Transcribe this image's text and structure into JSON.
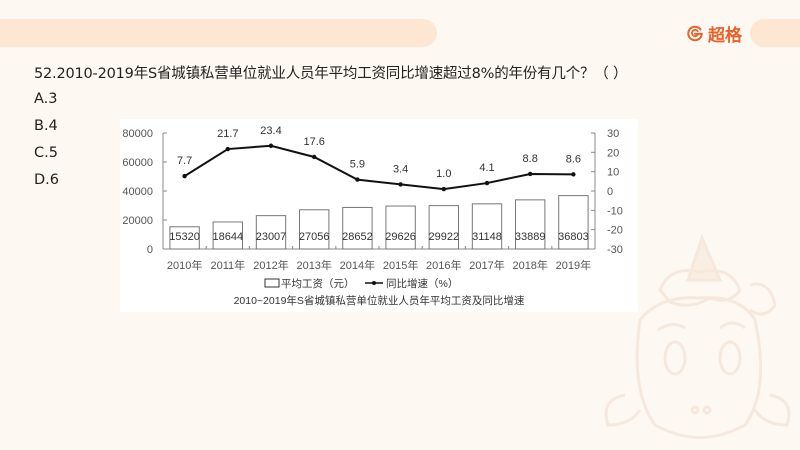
{
  "header": {
    "brand_name": "超格",
    "brand_icon": "g-logo-icon",
    "accent_color": "#e8622c",
    "bar_color": "#fde6d2"
  },
  "question": {
    "text": "52.2010-2019年S省城镇私营单位就业人员年平均工资同比增速超过8%的年份有几个？（    ）",
    "options": [
      {
        "label": "A.3"
      },
      {
        "label": "B.4"
      },
      {
        "label": "C.5"
      },
      {
        "label": "D.6"
      }
    ]
  },
  "chart_data": {
    "type": "bar+line",
    "title": "2010~2019年S省城镇私营单位就业人员年平均工资及同比增速",
    "categories": [
      "2010年",
      "2011年",
      "2012年",
      "2013年",
      "2014年",
      "2015年",
      "2016年",
      "2017年",
      "2018年",
      "2019年"
    ],
    "series": [
      {
        "name": "平均工资（元）",
        "type": "bar",
        "axis": "left",
        "values": [
          15320,
          18644,
          23007,
          27056,
          28652,
          29626,
          29922,
          31148,
          33889,
          36803
        ]
      },
      {
        "name": "同比增速（%）",
        "type": "line",
        "axis": "right",
        "values": [
          7.7,
          21.7,
          23.4,
          17.6,
          5.9,
          3.4,
          1.0,
          4.1,
          8.8,
          8.6
        ]
      }
    ],
    "left_axis": {
      "ylim": [
        0,
        80000
      ],
      "ticks": [
        "0",
        "20000",
        "40000",
        "60000",
        "80000"
      ]
    },
    "right_axis": {
      "ylim": [
        -30,
        30
      ],
      "ticks": [
        "-30",
        "-20",
        "-10",
        "0",
        "10",
        "20",
        "30"
      ]
    },
    "legend": {
      "position": "bottom",
      "entries": [
        "平均工资（元）",
        "同比增速（%）"
      ]
    },
    "grid": false
  }
}
